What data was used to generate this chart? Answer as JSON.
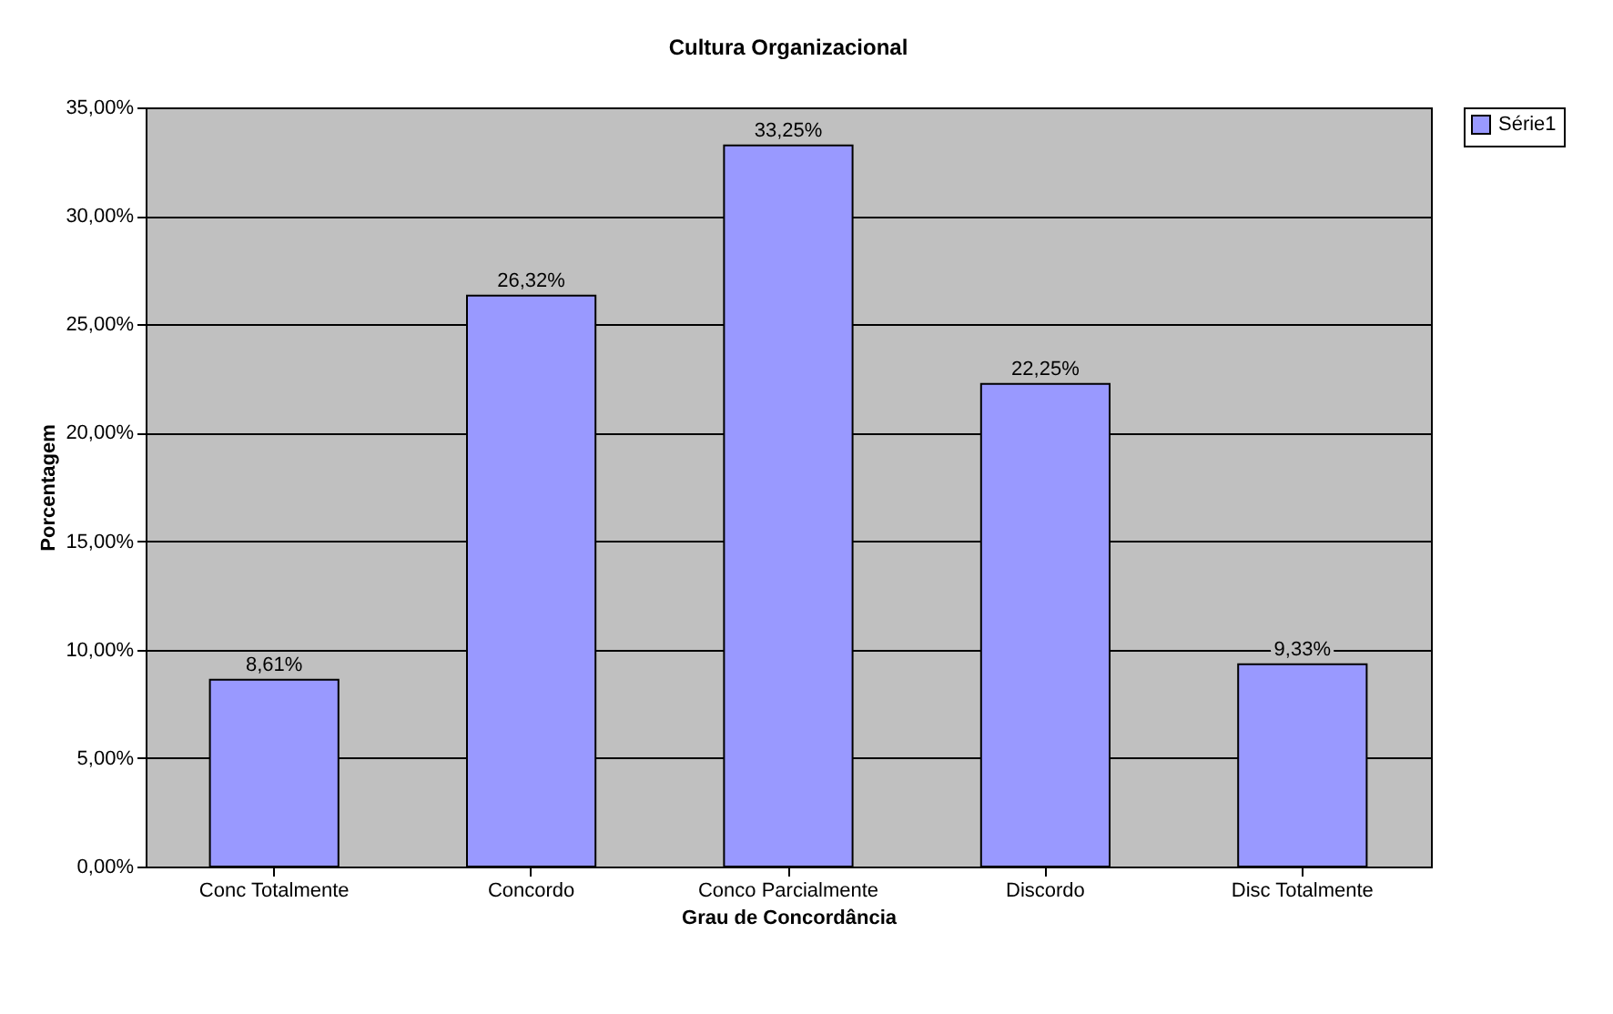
{
  "chart_data": {
    "type": "bar",
    "title": "Cultura Organizacional",
    "xlabel": "Grau de Concordância",
    "ylabel": "Porcentagem",
    "categories": [
      "Conc Totalmente",
      "Concordo",
      "Conco Parcialmente",
      "Discordo",
      "Disc Totalmente"
    ],
    "series": [
      {
        "name": "Série1",
        "color": "#9999ff",
        "values": [
          8.61,
          26.32,
          33.25,
          22.25,
          9.33
        ],
        "value_labels": [
          "8,61%",
          "26,32%",
          "33,25%",
          "22,25%",
          "9,33%"
        ]
      }
    ],
    "ylim": [
      0,
      35
    ],
    "yticks": [
      {
        "value": 0,
        "label": "0,00%"
      },
      {
        "value": 5,
        "label": "5,00%"
      },
      {
        "value": 10,
        "label": "10,00%"
      },
      {
        "value": 15,
        "label": "15,00%"
      },
      {
        "value": 20,
        "label": "20,00%"
      },
      {
        "value": 25,
        "label": "25,00%"
      },
      {
        "value": 30,
        "label": "30,00%"
      },
      {
        "value": 35,
        "label": "35,00%"
      }
    ],
    "grid": "y",
    "legend": "right"
  }
}
